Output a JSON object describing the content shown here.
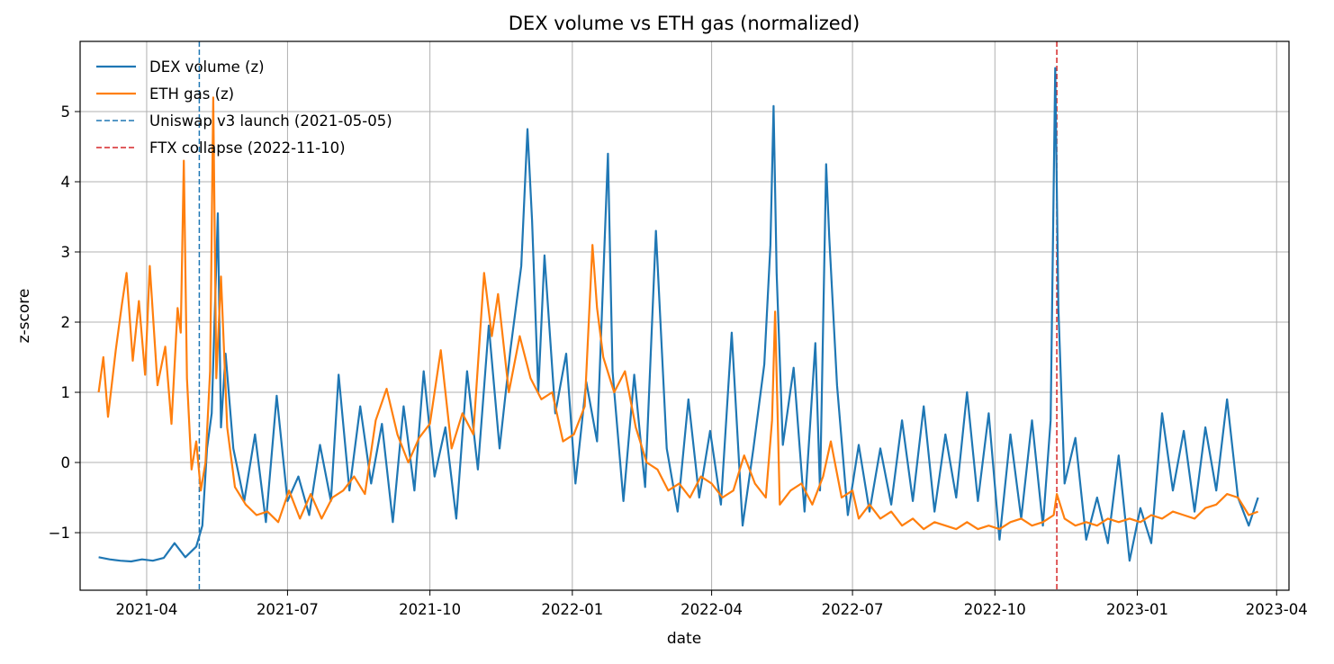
{
  "chart_data": {
    "type": "line",
    "title": "DEX volume vs ETH gas (normalized)",
    "xlabel": "date",
    "ylabel": "z-score",
    "xlim": [
      "2021-02-17",
      "2023-04-09"
    ],
    "ylim": [
      -1.82,
      6.0
    ],
    "x_ticks": [
      "2021-04-01",
      "2021-07-01",
      "2021-10-01",
      "2022-01-01",
      "2022-04-01",
      "2022-07-01",
      "2022-10-01",
      "2023-01-01",
      "2023-04-01"
    ],
    "x_tick_labels": [
      "2021-04",
      "2021-07",
      "2021-10",
      "2022-01",
      "2022-04",
      "2022-07",
      "2022-10",
      "2023-01",
      "2023-04"
    ],
    "y_ticks": [
      -1,
      0,
      1,
      2,
      3,
      4,
      5
    ],
    "y_tick_labels": [
      "−1",
      "0",
      "1",
      "2",
      "3",
      "4",
      "5"
    ],
    "grid": true,
    "legend_position": "top-left",
    "series": [
      {
        "name": "DEX volume (z)",
        "color": "#1f77b4",
        "points": [
          [
            "2021-03-01",
            -1.35
          ],
          [
            "2021-03-08",
            -1.38
          ],
          [
            "2021-03-15",
            -1.4
          ],
          [
            "2021-03-22",
            -1.41
          ],
          [
            "2021-03-29",
            -1.38
          ],
          [
            "2021-04-05",
            -1.4
          ],
          [
            "2021-04-12",
            -1.36
          ],
          [
            "2021-04-19",
            -1.15
          ],
          [
            "2021-04-26",
            -1.35
          ],
          [
            "2021-05-03",
            -1.2
          ],
          [
            "2021-05-07",
            -0.9
          ],
          [
            "2021-05-10",
            0.2
          ],
          [
            "2021-05-13",
            0.7
          ],
          [
            "2021-05-17",
            3.55
          ],
          [
            "2021-05-19",
            0.5
          ],
          [
            "2021-05-22",
            1.55
          ],
          [
            "2021-05-27",
            0.2
          ],
          [
            "2021-06-03",
            -0.55
          ],
          [
            "2021-06-10",
            0.4
          ],
          [
            "2021-06-17",
            -0.85
          ],
          [
            "2021-06-24",
            0.95
          ],
          [
            "2021-07-01",
            -0.55
          ],
          [
            "2021-07-08",
            -0.2
          ],
          [
            "2021-07-15",
            -0.75
          ],
          [
            "2021-07-22",
            0.25
          ],
          [
            "2021-07-29",
            -0.55
          ],
          [
            "2021-08-03",
            1.25
          ],
          [
            "2021-08-10",
            -0.4
          ],
          [
            "2021-08-17",
            0.8
          ],
          [
            "2021-08-24",
            -0.3
          ],
          [
            "2021-08-31",
            0.55
          ],
          [
            "2021-09-07",
            -0.85
          ],
          [
            "2021-09-14",
            0.8
          ],
          [
            "2021-09-21",
            -0.4
          ],
          [
            "2021-09-27",
            1.3
          ],
          [
            "2021-10-04",
            -0.2
          ],
          [
            "2021-10-11",
            0.5
          ],
          [
            "2021-10-18",
            -0.8
          ],
          [
            "2021-10-25",
            1.3
          ],
          [
            "2021-11-01",
            -0.1
          ],
          [
            "2021-11-08",
            1.95
          ],
          [
            "2021-11-15",
            0.2
          ],
          [
            "2021-11-22",
            1.6
          ],
          [
            "2021-11-29",
            2.8
          ],
          [
            "2021-12-03",
            4.75
          ],
          [
            "2021-12-06",
            3.45
          ],
          [
            "2021-12-10",
            1.0
          ],
          [
            "2021-12-14",
            2.95
          ],
          [
            "2021-12-21",
            0.7
          ],
          [
            "2021-12-28",
            1.55
          ],
          [
            "2022-01-03",
            -0.3
          ],
          [
            "2022-01-10",
            1.15
          ],
          [
            "2022-01-17",
            0.3
          ],
          [
            "2022-01-24",
            4.4
          ],
          [
            "2022-01-27",
            1.3
          ],
          [
            "2022-02-03",
            -0.55
          ],
          [
            "2022-02-10",
            1.25
          ],
          [
            "2022-02-17",
            -0.35
          ],
          [
            "2022-02-24",
            3.3
          ],
          [
            "2022-03-03",
            0.2
          ],
          [
            "2022-03-10",
            -0.7
          ],
          [
            "2022-03-17",
            0.9
          ],
          [
            "2022-03-24",
            -0.5
          ],
          [
            "2022-03-31",
            0.45
          ],
          [
            "2022-04-07",
            -0.6
          ],
          [
            "2022-04-14",
            1.85
          ],
          [
            "2022-04-21",
            -0.9
          ],
          [
            "2022-04-28",
            0.2
          ],
          [
            "2022-05-05",
            1.4
          ],
          [
            "2022-05-09",
            3.1
          ],
          [
            "2022-05-11",
            5.08
          ],
          [
            "2022-05-13",
            2.7
          ],
          [
            "2022-05-17",
            0.25
          ],
          [
            "2022-05-24",
            1.35
          ],
          [
            "2022-05-31",
            -0.7
          ],
          [
            "2022-06-07",
            1.7
          ],
          [
            "2022-06-10",
            -0.4
          ],
          [
            "2022-06-14",
            4.25
          ],
          [
            "2022-06-16",
            3.2
          ],
          [
            "2022-06-21",
            1.1
          ],
          [
            "2022-06-28",
            -0.75
          ],
          [
            "2022-07-05",
            0.25
          ],
          [
            "2022-07-12",
            -0.7
          ],
          [
            "2022-07-19",
            0.2
          ],
          [
            "2022-07-26",
            -0.6
          ],
          [
            "2022-08-02",
            0.6
          ],
          [
            "2022-08-09",
            -0.55
          ],
          [
            "2022-08-16",
            0.8
          ],
          [
            "2022-08-23",
            -0.7
          ],
          [
            "2022-08-30",
            0.4
          ],
          [
            "2022-09-06",
            -0.5
          ],
          [
            "2022-09-13",
            1.0
          ],
          [
            "2022-09-20",
            -0.55
          ],
          [
            "2022-09-27",
            0.7
          ],
          [
            "2022-10-04",
            -1.1
          ],
          [
            "2022-10-11",
            0.4
          ],
          [
            "2022-10-18",
            -0.8
          ],
          [
            "2022-10-25",
            0.6
          ],
          [
            "2022-11-01",
            -0.9
          ],
          [
            "2022-11-06",
            0.6
          ],
          [
            "2022-11-09",
            5.62
          ],
          [
            "2022-11-11",
            2.2
          ],
          [
            "2022-11-15",
            -0.3
          ],
          [
            "2022-11-22",
            0.35
          ],
          [
            "2022-11-29",
            -1.1
          ],
          [
            "2022-12-06",
            -0.5
          ],
          [
            "2022-12-13",
            -1.15
          ],
          [
            "2022-12-20",
            0.1
          ],
          [
            "2022-12-27",
            -1.4
          ],
          [
            "2023-01-03",
            -0.65
          ],
          [
            "2023-01-10",
            -1.15
          ],
          [
            "2023-01-17",
            0.7
          ],
          [
            "2023-01-24",
            -0.4
          ],
          [
            "2023-01-31",
            0.45
          ],
          [
            "2023-02-07",
            -0.7
          ],
          [
            "2023-02-14",
            0.5
          ],
          [
            "2023-02-21",
            -0.4
          ],
          [
            "2023-02-28",
            0.9
          ],
          [
            "2023-03-07",
            -0.5
          ],
          [
            "2023-03-14",
            -0.9
          ],
          [
            "2023-03-20",
            -0.5
          ]
        ]
      },
      {
        "name": "ETH gas (z)",
        "color": "#ff7f0e",
        "points": [
          [
            "2021-03-01",
            1.0
          ],
          [
            "2021-03-04",
            1.5
          ],
          [
            "2021-03-07",
            0.65
          ],
          [
            "2021-03-12",
            1.6
          ],
          [
            "2021-03-16",
            2.25
          ],
          [
            "2021-03-19",
            2.7
          ],
          [
            "2021-03-23",
            1.45
          ],
          [
            "2021-03-27",
            2.3
          ],
          [
            "2021-03-31",
            1.25
          ],
          [
            "2021-04-03",
            2.8
          ],
          [
            "2021-04-08",
            1.1
          ],
          [
            "2021-04-13",
            1.65
          ],
          [
            "2021-04-17",
            0.55
          ],
          [
            "2021-04-21",
            2.2
          ],
          [
            "2021-04-23",
            1.85
          ],
          [
            "2021-04-25",
            4.3
          ],
          [
            "2021-04-27",
            1.2
          ],
          [
            "2021-04-30",
            -0.1
          ],
          [
            "2021-05-03",
            0.3
          ],
          [
            "2021-05-06",
            -0.4
          ],
          [
            "2021-05-09",
            0.0
          ],
          [
            "2021-05-12",
            1.3
          ],
          [
            "2021-05-14",
            5.2
          ],
          [
            "2021-05-16",
            1.2
          ],
          [
            "2021-05-19",
            2.65
          ],
          [
            "2021-05-23",
            0.5
          ],
          [
            "2021-05-28",
            -0.35
          ],
          [
            "2021-06-04",
            -0.6
          ],
          [
            "2021-06-11",
            -0.75
          ],
          [
            "2021-06-18",
            -0.7
          ],
          [
            "2021-06-25",
            -0.85
          ],
          [
            "2021-07-02",
            -0.4
          ],
          [
            "2021-07-09",
            -0.8
          ],
          [
            "2021-07-16",
            -0.45
          ],
          [
            "2021-07-23",
            -0.8
          ],
          [
            "2021-07-30",
            -0.5
          ],
          [
            "2021-08-06",
            -0.4
          ],
          [
            "2021-08-13",
            -0.2
          ],
          [
            "2021-08-20",
            -0.45
          ],
          [
            "2021-08-27",
            0.6
          ],
          [
            "2021-09-03",
            1.05
          ],
          [
            "2021-09-10",
            0.4
          ],
          [
            "2021-09-17",
            0.0
          ],
          [
            "2021-09-24",
            0.35
          ],
          [
            "2021-10-01",
            0.55
          ],
          [
            "2021-10-08",
            1.6
          ],
          [
            "2021-10-15",
            0.2
          ],
          [
            "2021-10-22",
            0.7
          ],
          [
            "2021-10-29",
            0.4
          ],
          [
            "2021-11-05",
            2.7
          ],
          [
            "2021-11-10",
            1.8
          ],
          [
            "2021-11-14",
            2.4
          ],
          [
            "2021-11-21",
            1.0
          ],
          [
            "2021-11-28",
            1.8
          ],
          [
            "2021-12-05",
            1.2
          ],
          [
            "2021-12-12",
            0.9
          ],
          [
            "2021-12-19",
            1.0
          ],
          [
            "2021-12-26",
            0.3
          ],
          [
            "2022-01-02",
            0.4
          ],
          [
            "2022-01-09",
            0.8
          ],
          [
            "2022-01-14",
            3.1
          ],
          [
            "2022-01-17",
            2.2
          ],
          [
            "2022-01-21",
            1.5
          ],
          [
            "2022-01-28",
            1.0
          ],
          [
            "2022-02-04",
            1.3
          ],
          [
            "2022-02-11",
            0.5
          ],
          [
            "2022-02-18",
            0.0
          ],
          [
            "2022-02-25",
            -0.1
          ],
          [
            "2022-03-04",
            -0.4
          ],
          [
            "2022-03-11",
            -0.3
          ],
          [
            "2022-03-18",
            -0.5
          ],
          [
            "2022-03-25",
            -0.2
          ],
          [
            "2022-04-01",
            -0.3
          ],
          [
            "2022-04-08",
            -0.5
          ],
          [
            "2022-04-15",
            -0.4
          ],
          [
            "2022-04-22",
            0.1
          ],
          [
            "2022-04-29",
            -0.3
          ],
          [
            "2022-05-06",
            -0.5
          ],
          [
            "2022-05-10",
            0.6
          ],
          [
            "2022-05-12",
            2.15
          ],
          [
            "2022-05-15",
            -0.6
          ],
          [
            "2022-05-22",
            -0.4
          ],
          [
            "2022-05-29",
            -0.3
          ],
          [
            "2022-06-05",
            -0.6
          ],
          [
            "2022-06-12",
            -0.2
          ],
          [
            "2022-06-17",
            0.3
          ],
          [
            "2022-06-24",
            -0.5
          ],
          [
            "2022-07-01",
            -0.4
          ],
          [
            "2022-07-05",
            -0.8
          ],
          [
            "2022-07-12",
            -0.6
          ],
          [
            "2022-07-19",
            -0.8
          ],
          [
            "2022-07-26",
            -0.7
          ],
          [
            "2022-08-02",
            -0.9
          ],
          [
            "2022-08-09",
            -0.8
          ],
          [
            "2022-08-16",
            -0.95
          ],
          [
            "2022-08-23",
            -0.85
          ],
          [
            "2022-08-30",
            -0.9
          ],
          [
            "2022-09-06",
            -0.95
          ],
          [
            "2022-09-13",
            -0.85
          ],
          [
            "2022-09-20",
            -0.95
          ],
          [
            "2022-09-27",
            -0.9
          ],
          [
            "2022-10-04",
            -0.95
          ],
          [
            "2022-10-11",
            -0.85
          ],
          [
            "2022-10-18",
            -0.8
          ],
          [
            "2022-10-25",
            -0.9
          ],
          [
            "2022-11-01",
            -0.85
          ],
          [
            "2022-11-08",
            -0.75
          ],
          [
            "2022-11-10",
            -0.45
          ],
          [
            "2022-11-15",
            -0.8
          ],
          [
            "2022-11-22",
            -0.9
          ],
          [
            "2022-11-29",
            -0.85
          ],
          [
            "2022-12-06",
            -0.9
          ],
          [
            "2022-12-13",
            -0.8
          ],
          [
            "2022-12-20",
            -0.85
          ],
          [
            "2022-12-27",
            -0.8
          ],
          [
            "2023-01-03",
            -0.85
          ],
          [
            "2023-01-10",
            -0.75
          ],
          [
            "2023-01-17",
            -0.8
          ],
          [
            "2023-01-24",
            -0.7
          ],
          [
            "2023-01-31",
            -0.75
          ],
          [
            "2023-02-07",
            -0.8
          ],
          [
            "2023-02-14",
            -0.65
          ],
          [
            "2023-02-21",
            -0.6
          ],
          [
            "2023-02-28",
            -0.45
          ],
          [
            "2023-03-07",
            -0.5
          ],
          [
            "2023-03-14",
            -0.75
          ],
          [
            "2023-03-20",
            -0.7
          ]
        ]
      }
    ],
    "events": [
      {
        "label": "Uniswap v3 launch (2021-05-05)",
        "date": "2021-05-05",
        "color": "#1f77b4"
      },
      {
        "label": "FTX collapse (2022-11-10)",
        "date": "2022-11-10",
        "color": "#d62728"
      }
    ]
  }
}
